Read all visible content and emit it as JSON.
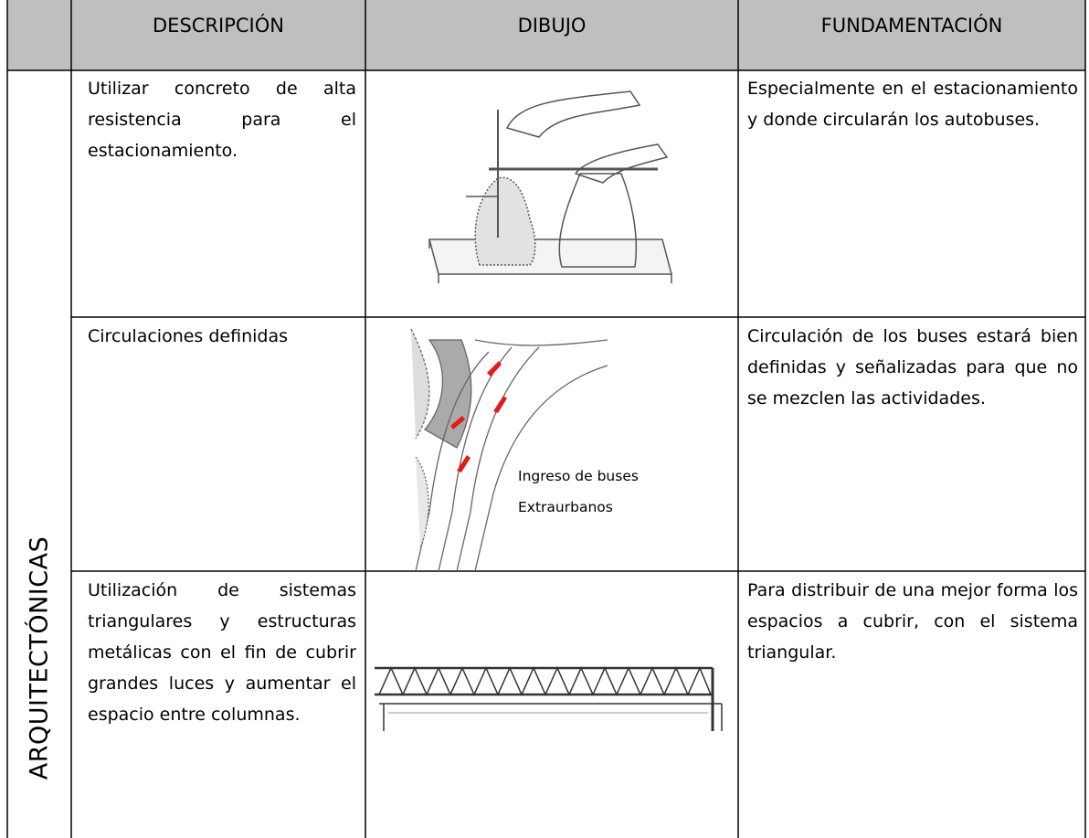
{
  "table": {
    "header": [
      "DESCRIPCIÓN",
      "DIBUJO",
      "FUNDAMENTACIÓN"
    ],
    "category": "ARQUITECTÓNICAS",
    "rows": [
      {
        "description": "Utilizar concreto de alta resistencia para el estacionamiento.",
        "foundation": "Especialmente en el estacionamiento y donde circularán los autobuses."
      },
      {
        "description": "Circulaciones definidas",
        "foundation": "Circulación de los buses estará bien definidas y señalizadas para que no se mezclen las actividades."
      },
      {
        "description": "Utilización de sistemas triangulares y estructuras metálicas con el fin de cubrir grandes luces y aumentar el espacio entre columnas.",
        "foundation": "Para distribuir de una mejor forma los espacios a cubrir, con el sistema triangular."
      }
    ],
    "drawing_label": [
      "Ingreso de buses",
      "Extraurbanos"
    ]
  }
}
